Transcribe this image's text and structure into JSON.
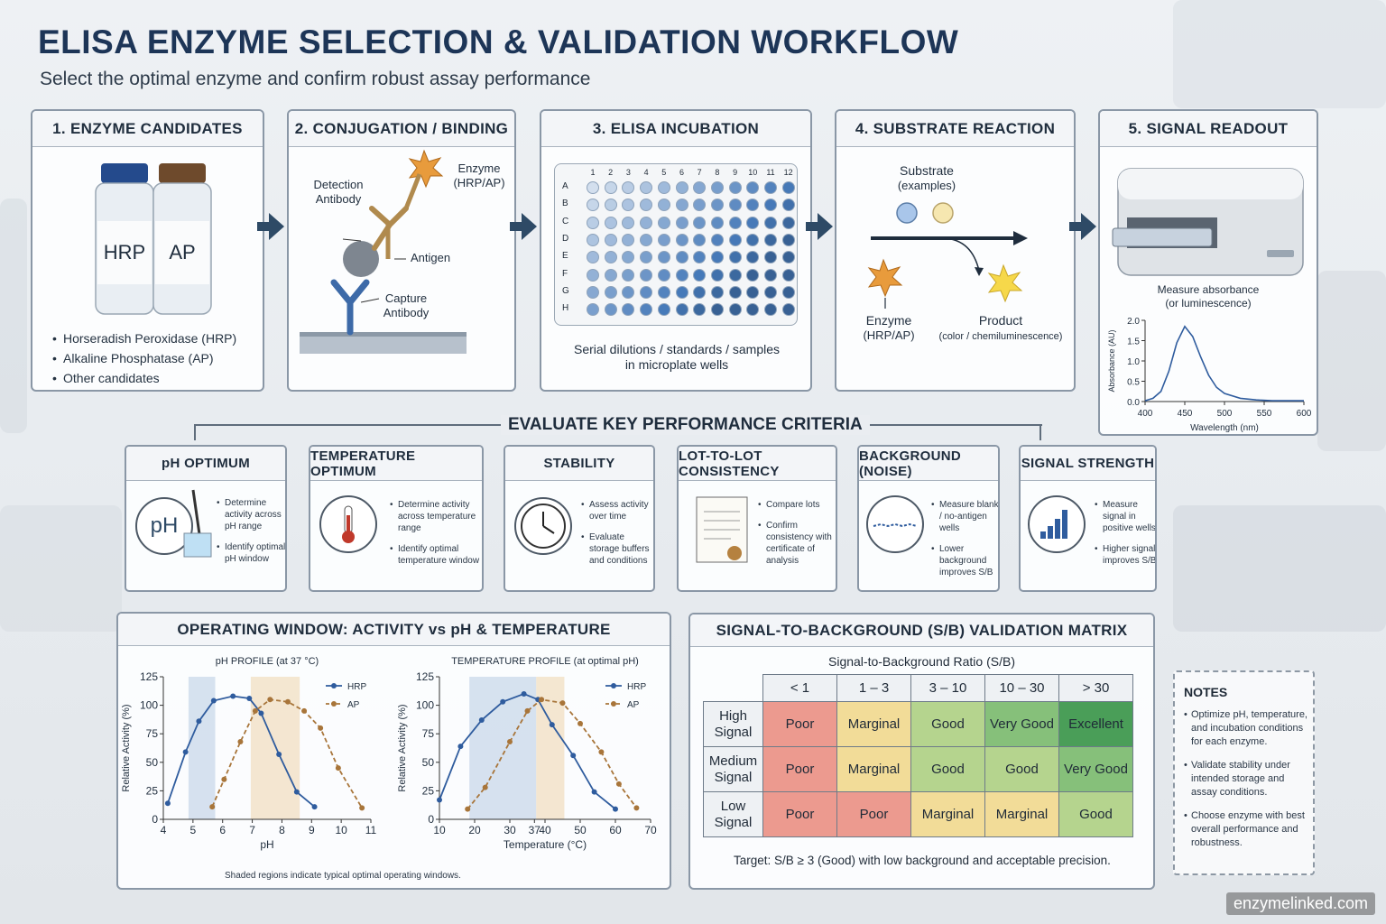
{
  "header": {
    "title": "ELISA ENZYME SELECTION & VALIDATION WORKFLOW",
    "subtitle": "Select the optimal enzyme and confirm robust assay performance"
  },
  "steps": [
    {
      "title": "1. ENZYME CANDIDATES",
      "vials": [
        "HRP",
        "AP"
      ],
      "bullets": [
        "Horseradish Peroxidase (HRP)",
        "Alkaline Phosphatase (AP)",
        "Other candidates"
      ]
    },
    {
      "title": "2. CONJUGATION / BINDING",
      "labels": {
        "enzyme": "Enzyme",
        "enzyme_sub": "(HRP/AP)",
        "detection": "Detection",
        "detection2": "Antibody",
        "antigen": "Antigen",
        "capture": "Capture",
        "capture2": "Antibody"
      }
    },
    {
      "title": "3. ELISA INCUBATION",
      "columns": [
        "1",
        "2",
        "3",
        "4",
        "5",
        "6",
        "7",
        "8",
        "9",
        "10",
        "11",
        "12"
      ],
      "rows": [
        "A",
        "B",
        "C",
        "D",
        "E",
        "F",
        "G",
        "H"
      ],
      "caption1": "Serial dilutions / standards / samples",
      "caption2": "in microplate wells"
    },
    {
      "title": "4. SUBSTRATE REACTION",
      "labels": {
        "substrate": "Substrate",
        "substrate_sub": "(examples)",
        "enzyme": "Enzyme",
        "enzyme_sub": "(HRP/AP)",
        "product": "Product",
        "product_sub": "(color / chemiluminescence)"
      }
    },
    {
      "title": "5. SIGNAL READOUT",
      "caption1": "Measure absorbance",
      "caption2": "(or luminescence)"
    }
  ],
  "criteria_title": "EVALUATE KEY PERFORMANCE CRITERIA",
  "criteria": [
    {
      "title": "pH OPTIMUM",
      "icon_text": "pH",
      "bullets": [
        "Determine activity across pH range",
        "Identify optimal pH window"
      ]
    },
    {
      "title": "TEMPERATURE OPTIMUM",
      "bullets": [
        "Determine activity across temperature range",
        "Identify optimal temperature window"
      ]
    },
    {
      "title": "STABILITY",
      "bullets": [
        "Assess activity over time",
        "Evaluate storage buffers and conditions"
      ]
    },
    {
      "title": "LOT-TO-LOT CONSISTENCY",
      "bullets": [
        "Compare lots",
        "Confirm consistency with certificate of analysis"
      ]
    },
    {
      "title": "BACKGROUND (NOISE)",
      "bullets": [
        "Measure blank / no-antigen wells",
        "Lower background improves S/B"
      ]
    },
    {
      "title": "SIGNAL STRENGTH",
      "bullets": [
        "Measure signal in positive wells",
        "Higher signal improves S/B"
      ]
    }
  ],
  "operating_window": {
    "title": "OPERATING WINDOW: ACTIVITY vs pH & TEMPERATURE",
    "footnote": "Shaded regions indicate typical optimal operating windows."
  },
  "matrix": {
    "title": "SIGNAL-TO-BACKGROUND (S/B) VALIDATION MATRIX",
    "subtitle": "Signal-to-Background Ratio (S/B)",
    "columns": [
      "< 1",
      "1 – 3",
      "3 – 10",
      "10 – 30",
      "> 30"
    ],
    "rows": [
      {
        "label1": "High",
        "label2": "Signal",
        "cells": [
          "Poor",
          "Marginal",
          "Good",
          "Very Good",
          "Excellent"
        ]
      },
      {
        "label1": "Medium",
        "label2": "Signal",
        "cells": [
          "Poor",
          "Marginal",
          "Good",
          "Good",
          "Very Good"
        ]
      },
      {
        "label1": "Low",
        "label2": "Signal",
        "cells": [
          "Poor",
          "Poor",
          "Marginal",
          "Marginal",
          "Good"
        ]
      }
    ],
    "rating_colors": {
      "Poor": "#ec9a8f",
      "Marginal": "#f2dc98",
      "Good": "#b5d48e",
      "Very Good": "#86c07a",
      "Excellent": "#4a9e58"
    },
    "target": "Target: S/B ≥ 3 (Good) with low background and acceptable precision."
  },
  "notes": {
    "title": "NOTES",
    "items": [
      "Optimize pH, temperature, and incubation conditions for each enzyme.",
      "Validate stability under intended storage and assay conditions.",
      "Choose enzyme with best overall performance and robustness."
    ]
  },
  "watermark": "enzymelinked.com",
  "colors": {
    "hrp": "#2f5c9e",
    "ap": "#a8753a"
  },
  "chart_data": [
    {
      "type": "line",
      "title": "",
      "xlabel": "Wavelength (nm)",
      "ylabel": "Absorbance (AU)",
      "xlim": [
        400,
        600
      ],
      "ylim": [
        0,
        2.0
      ],
      "xticks": [
        400,
        450,
        500,
        550,
        600
      ],
      "yticks": [
        0.0,
        0.5,
        1.0,
        1.5,
        2.0
      ],
      "series": [
        {
          "x": [
            400,
            410,
            420,
            430,
            440,
            450,
            460,
            470,
            480,
            490,
            500,
            520,
            540,
            560,
            580,
            600
          ],
          "y": [
            0.02,
            0.08,
            0.25,
            0.75,
            1.45,
            1.85,
            1.6,
            1.1,
            0.65,
            0.35,
            0.2,
            0.08,
            0.04,
            0.02,
            0.02,
            0.02
          ]
        }
      ]
    },
    {
      "type": "line",
      "title": "pH PROFILE (at 37 °C)",
      "xlabel": "pH",
      "ylabel": "Relative Activity (%)",
      "xlim": [
        4,
        11
      ],
      "ylim": [
        0,
        125
      ],
      "xticks": [
        4,
        5,
        6,
        7,
        8,
        9,
        10,
        11
      ],
      "yticks": [
        0,
        25,
        50,
        75,
        100,
        125
      ],
      "shaded_x": [
        [
          4.85,
          5.75
        ],
        [
          6.95,
          8.6
        ]
      ],
      "series": [
        {
          "name": "HRP",
          "x": [
            4.15,
            4.75,
            5.2,
            5.7,
            6.35,
            6.9,
            7.3,
            7.9,
            8.5,
            9.1
          ],
          "y": [
            14,
            59,
            86,
            104,
            108,
            106,
            93,
            57,
            24,
            11
          ]
        },
        {
          "name": "AP",
          "x": [
            5.65,
            6.05,
            6.6,
            7.1,
            7.6,
            8.2,
            8.75,
            9.3,
            9.9,
            10.7
          ],
          "y": [
            11,
            35,
            68,
            95,
            105,
            103,
            95,
            80,
            45,
            10
          ]
        }
      ]
    },
    {
      "type": "line",
      "title": "TEMPERATURE PROFILE (at optimal pH)",
      "xlabel": "Temperature (°C)",
      "ylabel": "Relative Activity (%)",
      "xlim": [
        10,
        70
      ],
      "ylim": [
        0,
        125
      ],
      "xticks": [
        10,
        20,
        30,
        37,
        40,
        50,
        60,
        70
      ],
      "yticks": [
        0,
        25,
        50,
        75,
        100,
        125
      ],
      "shaded_x": [
        [
          18.5,
          37.5
        ],
        [
          37.5,
          45.5
        ]
      ],
      "series": [
        {
          "name": "HRP",
          "x": [
            10,
            16,
            22,
            28,
            34,
            38,
            42,
            48,
            54,
            60
          ],
          "y": [
            17,
            64,
            87,
            103,
            110,
            105,
            83,
            56,
            24,
            9
          ]
        },
        {
          "name": "AP",
          "x": [
            18,
            23,
            30,
            35,
            39,
            45,
            50,
            56,
            61,
            66
          ],
          "y": [
            9,
            28,
            68,
            95,
            105,
            102,
            84,
            59,
            31,
            10
          ]
        }
      ]
    }
  ]
}
